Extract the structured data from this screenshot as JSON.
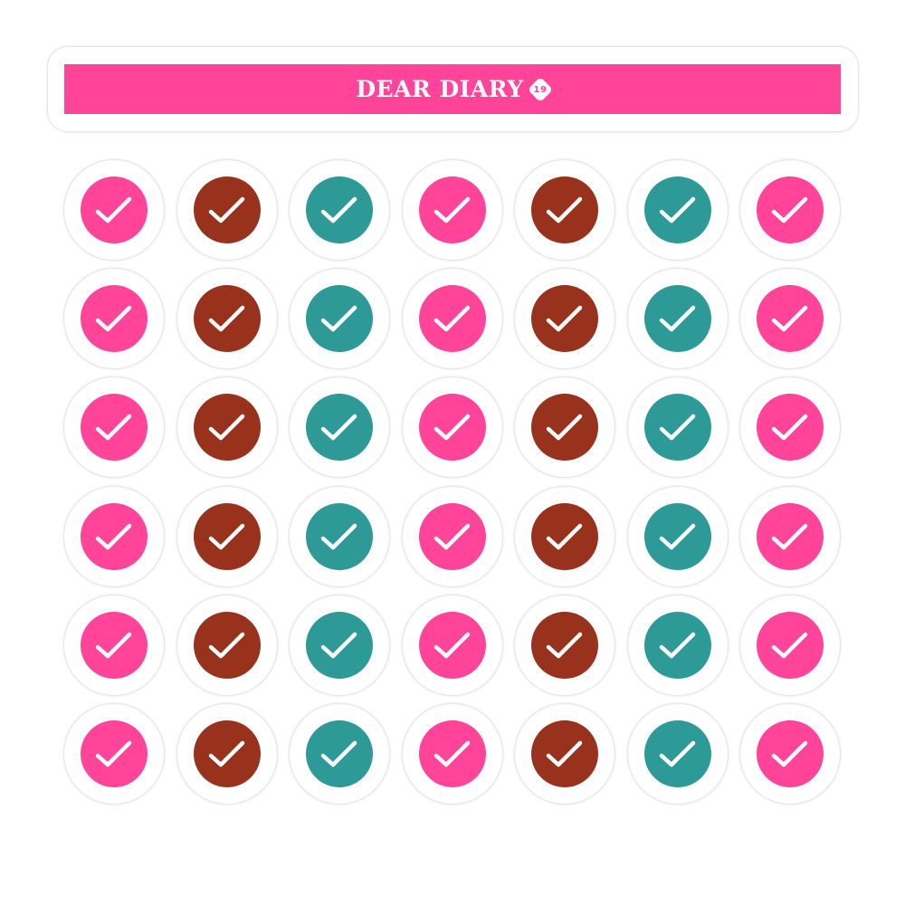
{
  "header": {
    "logo_text": "DEAR DIARY",
    "logo_badge": "19",
    "banner_color": "#FF4499"
  },
  "sheet": {
    "rows": 6,
    "columns": [
      "#FF4499",
      "#99321C",
      "#2E9A98",
      "#FF4499",
      "#99321C",
      "#2E9A98",
      "#FF4499"
    ],
    "icon": "checkmark-icon",
    "check_color": "#FFFFFF"
  }
}
